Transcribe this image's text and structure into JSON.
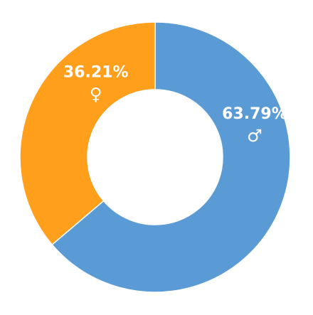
{
  "chart_data": {
    "type": "pie",
    "variant": "donut",
    "title": "",
    "slices": [
      {
        "label": "63.79%",
        "value": 63.79,
        "symbol": "♂",
        "symbol-icon": "male-symbol-icon",
        "color": "#5B9BD5"
      },
      {
        "label": "36.21%",
        "value": 36.21,
        "symbol": "♀",
        "symbol-icon": "female-symbol-icon",
        "color": "#FF9F1C"
      }
    ],
    "start_angle_deg": 0,
    "direction": "clockwise",
    "legend": "none"
  }
}
